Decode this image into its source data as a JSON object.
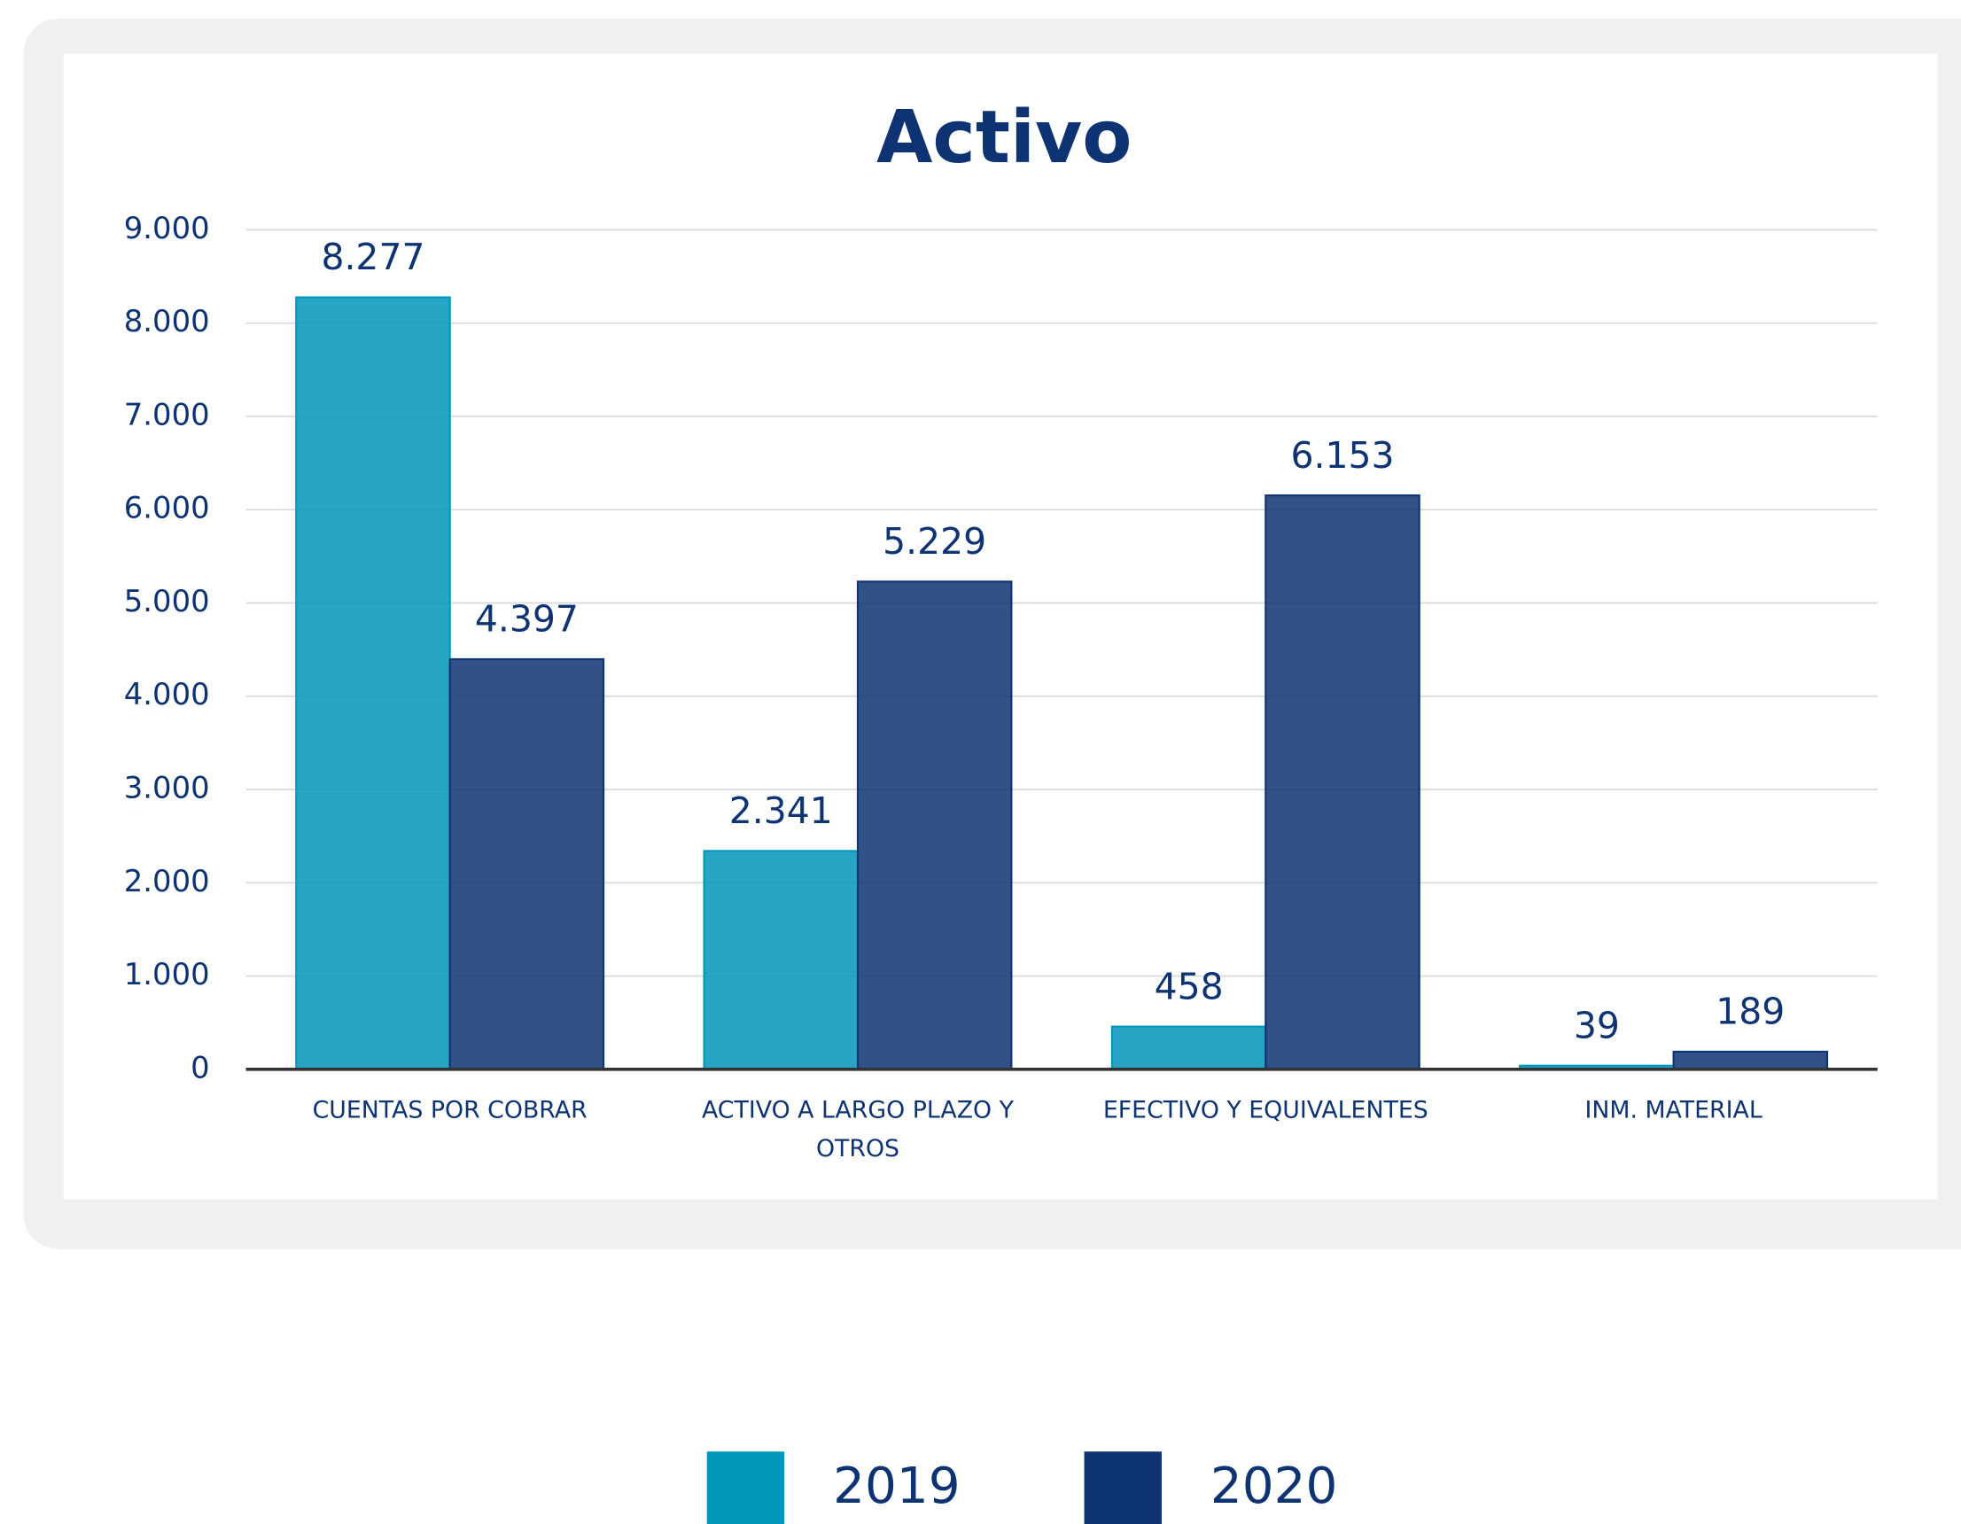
{
  "chart_data": {
    "type": "bar",
    "title": "Activo",
    "categories": [
      "CUENTAS POR COBRAR",
      "ACTIVO A LARGO PLAZO Y OTROS",
      "EFECTIVO Y EQUIVALENTES",
      "INM. MATERIAL"
    ],
    "series": [
      {
        "name": "2019",
        "color": "#0096ba",
        "values": [
          8277,
          2341,
          458,
          39
        ],
        "value_labels": [
          "8.277",
          "2.341",
          "458",
          "39"
        ]
      },
      {
        "name": "2020",
        "color": "#0d3372",
        "values": [
          4397,
          5229,
          6153,
          189
        ],
        "value_labels": [
          "4.397",
          "5.229",
          "6.153",
          "189"
        ]
      }
    ],
    "ylim": [
      0,
      9000
    ],
    "yticks": [
      0,
      {
        "value": 1000,
        "label": "1.000"
      },
      {
        "value": 2000,
        "label": "2.000"
      },
      {
        "value": 3000,
        "label": "3.000"
      },
      {
        "value": 4000,
        "label": "4.000"
      },
      {
        "value": 5000,
        "label": "5.000"
      },
      {
        "value": 6000,
        "label": "6.000"
      },
      {
        "value": 7000,
        "label": "7.000"
      },
      {
        "value": 8000,
        "label": "8.000"
      },
      {
        "value": 9000,
        "label": "9.000"
      }
    ],
    "grid": true,
    "legend": "bottom"
  }
}
